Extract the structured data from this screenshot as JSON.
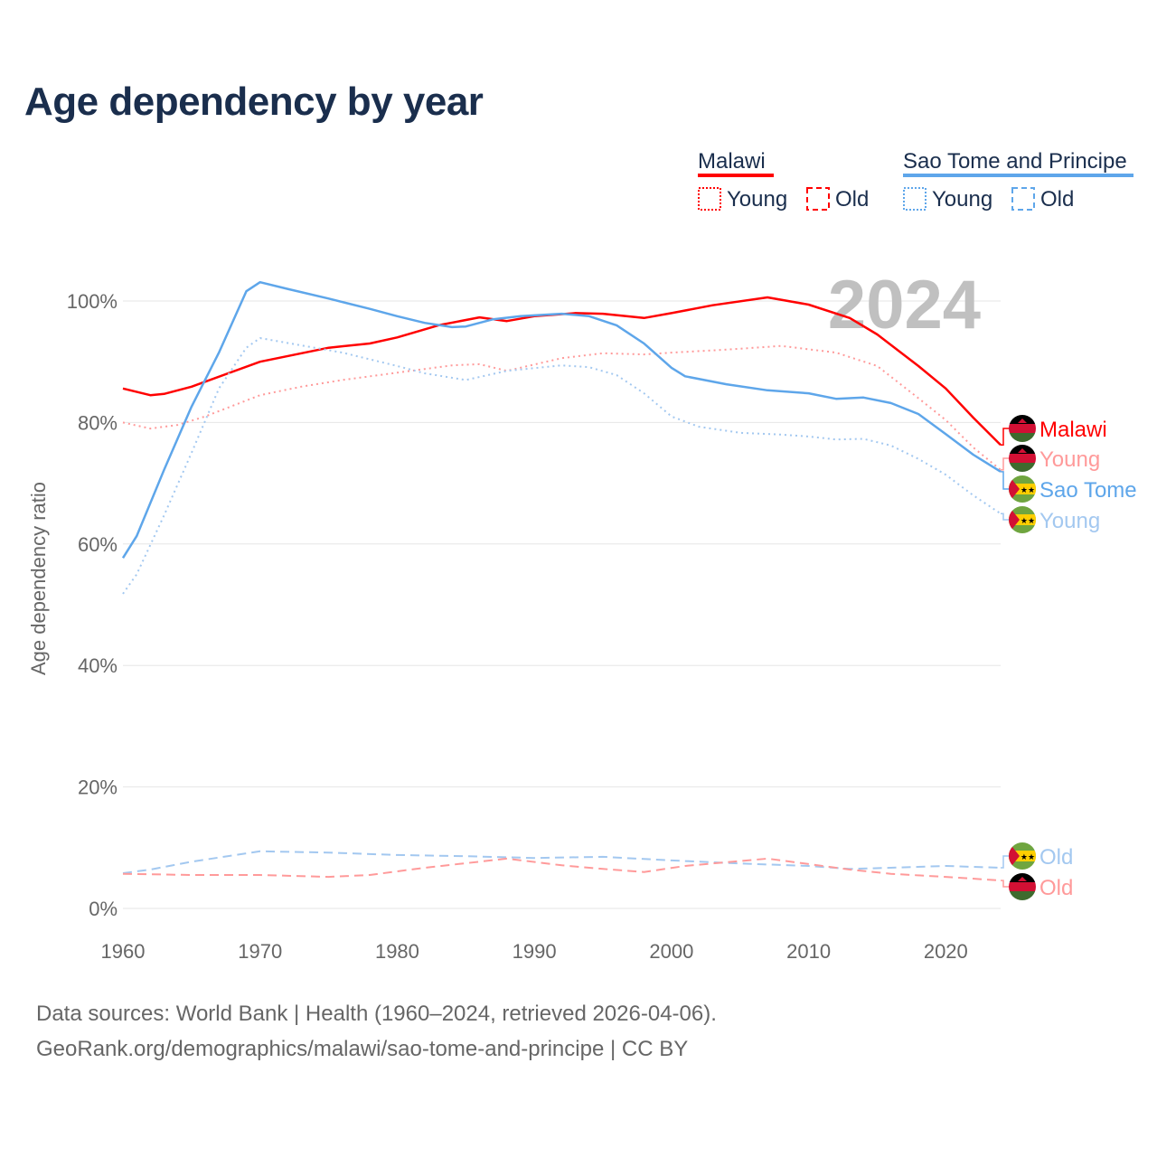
{
  "chart_data": {
    "type": "line",
    "title": "Age dependency by year",
    "ylabel": "Age dependency ratio",
    "xlabel": "",
    "year_badge": "2024",
    "xlim": [
      1960,
      2024
    ],
    "ylim": [
      0,
      110
    ],
    "x_ticks": [
      1960,
      1970,
      1980,
      1990,
      2000,
      2010,
      2020
    ],
    "y_ticks": [
      0,
      20,
      40,
      60,
      80,
      100
    ],
    "y_tick_labels": [
      "0%",
      "20%",
      "40%",
      "60%",
      "80%",
      "100%"
    ],
    "grid": true,
    "legend_position": "top-right",
    "legend": {
      "groups": [
        {
          "name": "Malawi",
          "color": "#ff0000",
          "items": [
            "Young",
            "Old"
          ]
        },
        {
          "name": "Sao Tome and Principe",
          "color": "#5ea6ea",
          "items": [
            "Young",
            "Old"
          ]
        }
      ]
    },
    "series": [
      {
        "name": "Malawi",
        "label": "Malawi",
        "country": "malawi",
        "style": "solid",
        "color": "#ff0000",
        "points": [
          [
            1960,
            85.6
          ],
          [
            1962,
            84.5
          ],
          [
            1963,
            84.7
          ],
          [
            1965,
            85.9
          ],
          [
            1970,
            90
          ],
          [
            1975,
            92.3
          ],
          [
            1978,
            93
          ],
          [
            1980,
            94
          ],
          [
            1983,
            96
          ],
          [
            1986,
            97.3
          ],
          [
            1988,
            96.7
          ],
          [
            1990,
            97.5
          ],
          [
            1993,
            98
          ],
          [
            1995,
            97.9
          ],
          [
            1998,
            97.2
          ],
          [
            2000,
            98
          ],
          [
            2003,
            99.3
          ],
          [
            2007,
            100.6
          ],
          [
            2010,
            99.4
          ],
          [
            2013,
            97.2
          ],
          [
            2015,
            94.5
          ],
          [
            2018,
            89.3
          ],
          [
            2020,
            85.6
          ],
          [
            2022,
            80.8
          ],
          [
            2024,
            76.3
          ]
        ]
      },
      {
        "name": "Malawi Young",
        "label": "Young",
        "country": "malawi",
        "style": "dotted",
        "color": "#ff9a9a",
        "points": [
          [
            1960,
            80
          ],
          [
            1962,
            79
          ],
          [
            1964,
            79.6
          ],
          [
            1966,
            81
          ],
          [
            1970,
            84.5
          ],
          [
            1973,
            85.9
          ],
          [
            1976,
            87
          ],
          [
            1980,
            88.2
          ],
          [
            1984,
            89.4
          ],
          [
            1986,
            89.6
          ],
          [
            1988,
            88.5
          ],
          [
            1992,
            90.6
          ],
          [
            1995,
            91.4
          ],
          [
            1998,
            91.2
          ],
          [
            2000,
            91.5
          ],
          [
            2004,
            92
          ],
          [
            2008,
            92.6
          ],
          [
            2012,
            91.5
          ],
          [
            2015,
            89.3
          ],
          [
            2018,
            84
          ],
          [
            2020,
            80.4
          ],
          [
            2022,
            75.9
          ],
          [
            2024,
            72.2
          ]
        ]
      },
      {
        "name": "Sao Tome and Principe",
        "label": "Sao Tome",
        "country": "stp",
        "style": "solid",
        "color": "#5ea6ea",
        "points": [
          [
            1960,
            57.7
          ],
          [
            1961,
            61.3
          ],
          [
            1963,
            72.2
          ],
          [
            1965,
            82.6
          ],
          [
            1967,
            91.5
          ],
          [
            1969,
            101.6
          ],
          [
            1970,
            103.1
          ],
          [
            1972,
            102
          ],
          [
            1975,
            100.4
          ],
          [
            1978,
            98.7
          ],
          [
            1980,
            97.5
          ],
          [
            1982,
            96.4
          ],
          [
            1984,
            95.7
          ],
          [
            1985,
            95.8
          ],
          [
            1987,
            97
          ],
          [
            1989,
            97.5
          ],
          [
            1992,
            97.9
          ],
          [
            1994,
            97.5
          ],
          [
            1996,
            96
          ],
          [
            1998,
            93
          ],
          [
            2000,
            89
          ],
          [
            2001,
            87.6
          ],
          [
            2004,
            86.3
          ],
          [
            2007,
            85.3
          ],
          [
            2010,
            84.8
          ],
          [
            2012,
            83.9
          ],
          [
            2014,
            84.1
          ],
          [
            2016,
            83.2
          ],
          [
            2018,
            81.4
          ],
          [
            2020,
            78.1
          ],
          [
            2022,
            74.7
          ],
          [
            2024,
            71.9
          ]
        ]
      },
      {
        "name": "Sao Tome and Principe Young",
        "label": "Young",
        "country": "stp",
        "style": "dotted",
        "color": "#a3c8f0",
        "points": [
          [
            1960,
            51.8
          ],
          [
            1961,
            55
          ],
          [
            1963,
            64.7
          ],
          [
            1965,
            75
          ],
          [
            1967,
            85.6
          ],
          [
            1969,
            92.3
          ],
          [
            1970,
            93.9
          ],
          [
            1973,
            92.7
          ],
          [
            1976,
            91.5
          ],
          [
            1980,
            89.3
          ],
          [
            1982,
            88.1
          ],
          [
            1985,
            87
          ],
          [
            1988,
            88.5
          ],
          [
            1992,
            89.4
          ],
          [
            1994,
            89.1
          ],
          [
            1996,
            87.8
          ],
          [
            1998,
            84.8
          ],
          [
            2000,
            81
          ],
          [
            2002,
            79.3
          ],
          [
            2005,
            78.3
          ],
          [
            2008,
            78
          ],
          [
            2010,
            77.7
          ],
          [
            2012,
            77.2
          ],
          [
            2014,
            77.3
          ],
          [
            2016,
            76.2
          ],
          [
            2018,
            74
          ],
          [
            2020,
            71.4
          ],
          [
            2022,
            68
          ],
          [
            2024,
            65
          ]
        ]
      },
      {
        "name": "Sao Tome and Principe Old",
        "label": "Old",
        "country": "stp",
        "style": "dashed",
        "color": "#a3c8f0",
        "points": [
          [
            1960,
            5.8
          ],
          [
            1962,
            6.4
          ],
          [
            1965,
            7.7
          ],
          [
            1970,
            9.4
          ],
          [
            1975,
            9.2
          ],
          [
            1980,
            8.8
          ],
          [
            1985,
            8.6
          ],
          [
            1990,
            8.3
          ],
          [
            1995,
            8.5
          ],
          [
            2000,
            7.9
          ],
          [
            2005,
            7.4
          ],
          [
            2010,
            7
          ],
          [
            2013,
            6.5
          ],
          [
            2016,
            6.7
          ],
          [
            2020,
            7
          ],
          [
            2024,
            6.7
          ]
        ]
      },
      {
        "name": "Malawi Old",
        "label": "Old",
        "country": "malawi",
        "style": "dashed",
        "color": "#ff9a9a",
        "points": [
          [
            1960,
            5.7
          ],
          [
            1965,
            5.5
          ],
          [
            1970,
            5.5
          ],
          [
            1975,
            5.2
          ],
          [
            1978,
            5.5
          ],
          [
            1982,
            6.7
          ],
          [
            1986,
            7.7
          ],
          [
            1988,
            8.2
          ],
          [
            1992,
            7.1
          ],
          [
            1995,
            6.5
          ],
          [
            1998,
            6
          ],
          [
            2001,
            7
          ],
          [
            2004,
            7.6
          ],
          [
            2007,
            8.2
          ],
          [
            2010,
            7.3
          ],
          [
            2013,
            6.4
          ],
          [
            2016,
            5.7
          ],
          [
            2020,
            5.2
          ],
          [
            2024,
            4.6
          ]
        ]
      }
    ]
  },
  "footer": {
    "line1": "Data sources: World Bank | Health (1960–2024, retrieved 2026-04-06).",
    "line2": "GeoRank.org/demographics/malawi/sao-tome-and-principe | CC BY"
  }
}
